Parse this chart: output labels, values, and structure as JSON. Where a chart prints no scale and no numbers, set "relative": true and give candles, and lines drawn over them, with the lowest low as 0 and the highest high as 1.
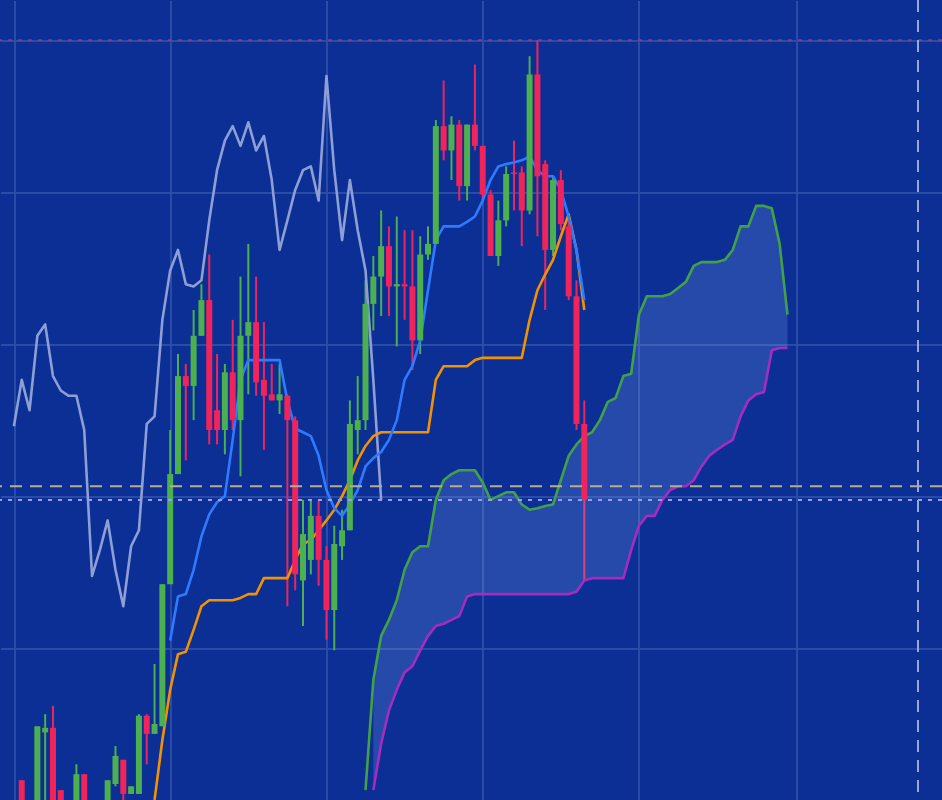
{
  "chart_data": {
    "type": "candlestick",
    "relative": true,
    "grid": true,
    "tick_labels": false,
    "categories": [
      null,
      null,
      null,
      null,
      null,
      null,
      null,
      null,
      null,
      null,
      null,
      null,
      null,
      null,
      null,
      null,
      null,
      null,
      null,
      null,
      null,
      null,
      null,
      null,
      null,
      null,
      null,
      null,
      null,
      null,
      null,
      null,
      null,
      null,
      null,
      null,
      null,
      null,
      null,
      null,
      null,
      null,
      null,
      null,
      null,
      null,
      null,
      null,
      null,
      null,
      null,
      null,
      null,
      null,
      null,
      null,
      null,
      null,
      null,
      null,
      null,
      null,
      null,
      null,
      null,
      null,
      null,
      null,
      null,
      null,
      null,
      null,
      null,
      null,
      null,
      null,
      null,
      null,
      null,
      null,
      null,
      null,
      null,
      null,
      null,
      null,
      null,
      null,
      null,
      null,
      null,
      null,
      null,
      null,
      null,
      null,
      null,
      null,
      null,
      null,
      null,
      null,
      null,
      null,
      null,
      null,
      null,
      null,
      null,
      null,
      null,
      null,
      null,
      null,
      null,
      null,
      null,
      null
    ],
    "colors": [
      null,
      "#f0245a",
      null,
      "#4caf50",
      "#4caf50",
      "#f0245a",
      "#f0245a",
      null,
      "#4caf50",
      "#f0245a",
      null,
      null,
      "#4caf50",
      "#4caf50",
      "#f0245a",
      "#4caf50",
      "#4caf50",
      "#f0245a",
      "#4caf50",
      "#4caf50",
      "#4caf50",
      "#4caf50",
      "#f0245a",
      "#4caf50",
      "#4caf50",
      "#f0245a",
      "#f0245a",
      "#4caf50",
      "#f0245a",
      "#4caf50",
      "#4caf50",
      "#f0245a",
      "#f0245a",
      "#f0245a",
      "#4caf50",
      "#f0245a",
      "#f0245a",
      "#4caf50",
      "#4caf50",
      "#f0245a",
      "#f0245a",
      "#4caf50",
      "#4caf50",
      "#4caf50",
      "#4caf50",
      "#4caf50",
      "#4caf50",
      "#4caf50",
      "#f0245a",
      "#4caf50",
      "#f0245a",
      "#f0245a",
      "#4caf50",
      "#4caf50",
      "#4caf50",
      "#f0245a",
      "#4caf50",
      "#f0245a",
      "#4caf50",
      "#f0245a",
      "#f0245a",
      "#f0245a",
      "#4caf50",
      "#4caf50",
      "#f0245a",
      "#f0245a",
      "#4caf50",
      "#f0245a",
      "#f0245a",
      "#4caf50",
      "#f0245a",
      "#f0245a",
      "#f0245a",
      "#f0245a",
      null,
      null,
      null,
      null,
      null,
      null,
      null,
      null,
      null,
      null,
      null,
      null,
      null,
      null,
      null,
      null,
      null,
      null,
      null,
      null,
      null,
      null,
      null,
      null,
      null,
      null,
      null,
      null,
      null,
      null,
      null,
      null,
      null,
      null,
      null,
      null,
      null,
      null,
      null,
      null,
      null,
      null,
      null,
      null
    ],
    "ohlc": [
      null,
      [
        0.026,
        0.026,
        0,
        0
      ],
      null,
      [
        0,
        0.097,
        0,
        0.097
      ],
      [
        0.089,
        0.113,
        0,
        0.095
      ],
      [
        0.095,
        0.124,
        0,
        0
      ],
      [
        0.013,
        0.013,
        0,
        0
      ],
      null,
      [
        0,
        0.047,
        0,
        0.034
      ],
      [
        0.034,
        0.034,
        0,
        0
      ],
      null,
      null,
      [
        0,
        0.026,
        0,
        0.026
      ],
      [
        0.021,
        0.071,
        0.018,
        0.058
      ],
      [
        0.053,
        0.053,
        0,
        0.008
      ],
      [
        0.008,
        0.018,
        0.008,
        0.018
      ],
      [
        0.008,
        0.113,
        0.008,
        0.111
      ],
      [
        0.111,
        0.113,
        0.047,
        0.087
      ],
      [
        0.087,
        0.179,
        0.087,
        0.1
      ],
      [
        0.097,
        0.284,
        0.097,
        0.284
      ],
      [
        0.284,
        0.487,
        0.284,
        0.429
      ],
      [
        0.429,
        0.587,
        0.429,
        0.558
      ],
      [
        0.558,
        0.574,
        0.447,
        0.545
      ],
      [
        0.545,
        0.645,
        0.5,
        0.611
      ],
      [
        0.611,
        0.679,
        0.611,
        0.658
      ],
      [
        0.658,
        0.718,
        0.468,
        0.487
      ],
      [
        0.513,
        0.587,
        0.468,
        0.487
      ],
      [
        0.487,
        0.574,
        0.455,
        0.563
      ],
      [
        0.563,
        0.632,
        0.487,
        0.5
      ],
      [
        0.5,
        0.689,
        0.426,
        0.611
      ],
      [
        0.611,
        0.732,
        0.534,
        0.629
      ],
      [
        0.629,
        0.689,
        0.532,
        0.55
      ],
      [
        0.553,
        0.629,
        0.461,
        0.532
      ],
      [
        0.534,
        0.574,
        0.526,
        0.526
      ],
      [
        0.526,
        0.574,
        0.508,
        0.534
      ],
      [
        0.532,
        0.534,
        0.255,
        0.5
      ],
      [
        0.5,
        0.505,
        0.276,
        0.297
      ],
      [
        0.289,
        0.395,
        0.229,
        0.35
      ],
      [
        0.316,
        0.395,
        0.297,
        0.374
      ],
      [
        0.374,
        0.395,
        0.282,
        0.316
      ],
      [
        0.316,
        0.334,
        0.211,
        0.25
      ],
      [
        0.25,
        0.361,
        0.197,
        0.337
      ],
      [
        0.334,
        0.382,
        0.316,
        0.355
      ],
      [
        0.355,
        0.526,
        0.355,
        0.495
      ],
      [
        0.487,
        0.558,
        0.455,
        0.5
      ],
      [
        0.5,
        0.684,
        0.487,
        0.653
      ],
      [
        0.653,
        0.716,
        0.618,
        0.689
      ],
      [
        0.689,
        0.776,
        0.637,
        0.729
      ],
      [
        0.729,
        0.755,
        0.637,
        0.676
      ],
      [
        0.676,
        0.768,
        0.597,
        0.679
      ],
      [
        0.679,
        0.75,
        0.632,
        0.676
      ],
      [
        0.676,
        0.75,
        0.566,
        0.605
      ],
      [
        0.605,
        0.742,
        0.587,
        0.718
      ],
      [
        0.718,
        0.755,
        0.711,
        0.732
      ],
      [
        0.732,
        0.895,
        0.732,
        0.887
      ],
      [
        0.887,
        0.947,
        0.842,
        0.855
      ],
      [
        0.855,
        0.9,
        0.816,
        0.889
      ],
      [
        0.889,
        0.895,
        0.789,
        0.808
      ],
      [
        0.808,
        0.889,
        0.789,
        0.889
      ],
      [
        0.889,
        0.968,
        0.855,
        0.861
      ],
      [
        0.861,
        0.861,
        0.789,
        0.797
      ],
      [
        0.797,
        0.803,
        0.716,
        0.716
      ],
      [
        0.716,
        0.789,
        0.703,
        0.763
      ],
      [
        0.763,
        0.834,
        0.755,
        0.824
      ],
      [
        0.826,
        0.868,
        0.776,
        0.824
      ],
      [
        0.826,
        0.834,
        0.729,
        0.776
      ],
      [
        0.776,
        0.979,
        0.771,
        0.955
      ],
      [
        0.955,
        1,
        0.742,
        0.821
      ],
      [
        0.837,
        0.842,
        0.645,
        0.724
      ],
      [
        0.724,
        0.821,
        0.716,
        0.816
      ],
      [
        0.816,
        0.829,
        0.75,
        0.758
      ],
      [
        0.755,
        0.763,
        0.658,
        0.663
      ],
      [
        0.663,
        0.684,
        0.487,
        0.495
      ],
      [
        0.495,
        0.526,
        0.289,
        0.395
      ],
      null,
      null,
      null,
      null,
      null,
      null,
      null,
      null,
      null,
      null,
      null,
      null,
      null,
      null,
      null,
      null,
      null,
      null,
      null,
      null,
      null,
      null,
      null,
      null,
      null,
      null,
      null,
      null,
      null,
      null,
      null,
      null,
      null,
      null,
      null,
      null,
      null,
      null,
      null,
      null,
      null,
      null,
      null,
      null
    ],
    "series": [
      {
        "type": "line",
        "color": "#8e9fd6",
        "values": [
          0.492,
          0.553,
          0.513,
          0.611,
          0.626,
          0.558,
          0.539,
          0.532,
          0.532,
          0.487,
          0.295,
          0.329,
          0.368,
          0.303,
          0.255,
          0.334,
          0.355,
          0.495,
          0.505,
          0.632,
          0.697,
          0.724,
          0.679,
          0.676,
          0.684,
          0.763,
          0.829,
          0.868,
          0.887,
          0.861,
          0.892,
          0.855,
          0.874,
          0.816,
          0.724,
          0.763,
          0.803,
          0.829,
          0.834,
          0.789,
          0.953,
          0.829,
          0.737,
          0.816,
          0.75,
          0.697,
          0.553,
          0.395,
          null,
          null,
          null,
          null,
          null,
          null,
          null,
          null,
          null,
          null,
          null,
          null,
          null,
          null,
          null,
          null,
          null,
          null,
          null,
          null,
          null,
          null,
          null,
          null,
          null,
          null,
          null,
          null,
          null,
          null,
          null,
          null,
          null,
          null,
          null,
          null,
          null,
          null,
          null,
          null,
          null,
          null,
          null,
          null,
          null,
          null,
          null,
          null,
          null,
          null,
          null,
          null,
          null,
          null,
          null,
          null,
          null,
          null,
          null,
          null,
          null,
          null,
          null,
          null,
          null,
          null,
          null,
          null,
          null,
          null
        ]
      },
      {
        "type": "line",
        "color": "#43a047",
        "values": [
          null,
          null,
          null,
          null,
          null,
          null,
          null,
          null,
          null,
          null,
          null,
          null,
          null,
          null,
          null,
          null,
          null,
          null,
          null,
          null,
          null,
          null,
          null,
          null,
          null,
          null,
          null,
          null,
          null,
          null,
          null,
          null,
          null,
          null,
          null,
          null,
          null,
          null,
          null,
          null,
          null,
          null,
          null,
          null,
          null,
          0.013,
          0.158,
          0.216,
          0.237,
          0.263,
          0.303,
          0.326,
          0.334,
          0.334,
          0.395,
          0.421,
          0.429,
          0.434,
          0.434,
          0.434,
          0.418,
          0.395,
          0.4,
          0.405,
          0.405,
          0.389,
          0.382,
          0.384,
          0.387,
          0.389,
          0.421,
          0.453,
          0.468,
          0.479,
          0.484,
          0.5,
          0.524,
          0.529,
          0.558,
          0.561,
          0.639,
          0.663,
          0.663,
          0.663,
          0.666,
          0.674,
          0.682,
          0.703,
          0.708,
          0.708,
          0.708,
          0.711,
          0.724,
          0.755,
          0.755,
          0.782,
          0.782,
          0.779,
          0.732,
          0.639,
          null,
          null,
          null,
          null,
          null,
          null,
          null,
          null,
          null,
          null,
          null,
          null,
          null,
          null,
          null,
          null,
          null,
          null
        ],
        "lower": [
          null,
          null,
          null,
          null,
          null,
          null,
          null,
          null,
          null,
          null,
          null,
          null,
          null,
          null,
          null,
          null,
          null,
          null,
          null,
          null,
          null,
          null,
          null,
          null,
          null,
          null,
          null,
          null,
          null,
          null,
          null,
          null,
          null,
          null,
          null,
          null,
          null,
          null,
          null,
          null,
          null,
          null,
          null,
          null,
          null,
          null,
          0.013,
          0.074,
          0.118,
          0.145,
          0.168,
          0.176,
          0.197,
          0.216,
          0.229,
          0.232,
          0.237,
          0.242,
          0.268,
          0.271,
          0.271,
          0.271,
          0.271,
          0.271,
          0.271,
          0.271,
          0.271,
          0.271,
          0.271,
          0.271,
          0.271,
          0.271,
          0.274,
          0.289,
          0.292,
          0.292,
          0.292,
          0.292,
          0.292,
          0.329,
          0.361,
          0.374,
          0.374,
          0.395,
          0.408,
          0.413,
          0.413,
          0.421,
          0.439,
          0.453,
          0.461,
          0.468,
          0.474,
          0.505,
          0.526,
          0.534,
          0.537,
          0.592,
          0.595,
          0.595,
          null,
          null,
          null,
          null,
          null,
          null,
          null,
          null,
          null,
          null,
          null,
          null,
          null,
          null,
          null,
          null,
          null,
          null
        ],
        "upper": [
          null,
          null,
          null,
          null,
          null,
          null,
          null,
          null,
          null,
          null,
          null,
          null,
          null,
          null,
          null,
          null,
          null,
          null,
          null,
          null,
          null,
          null,
          null,
          null,
          null,
          null,
          null,
          null,
          null,
          null,
          null,
          null,
          null,
          null,
          null,
          null,
          null,
          null,
          null,
          null,
          null,
          null,
          null,
          null,
          null,
          null,
          0.158,
          0.216,
          0.237,
          0.263,
          0.303,
          0.326,
          0.334,
          0.334,
          0.395,
          0.421,
          0.429,
          0.434,
          0.434,
          0.434,
          0.418,
          0.395,
          0.4,
          0.405,
          0.405,
          0.389,
          0.382,
          0.384,
          0.387,
          0.389,
          0.421,
          0.453,
          0.468,
          0.479,
          0.484,
          0.5,
          0.524,
          0.529,
          0.558,
          0.561,
          0.639,
          0.663,
          0.663,
          0.663,
          0.666,
          0.674,
          0.682,
          0.703,
          0.708,
          0.708,
          0.708,
          0.711,
          0.724,
          0.755,
          0.755,
          0.782,
          0.782,
          0.779,
          0.732,
          0.639,
          null,
          null,
          null,
          null,
          null,
          null,
          null,
          null,
          null,
          null,
          null,
          null,
          null,
          null,
          null,
          null,
          null,
          null
        ]
      },
      {
        "type": "line",
        "color": "#a42cc0",
        "values": [
          null,
          null,
          null,
          null,
          null,
          null,
          null,
          null,
          null,
          null,
          null,
          null,
          null,
          null,
          null,
          null,
          null,
          null,
          null,
          null,
          null,
          null,
          null,
          null,
          null,
          null,
          null,
          null,
          null,
          null,
          null,
          null,
          null,
          null,
          null,
          null,
          null,
          null,
          null,
          null,
          null,
          null,
          null,
          null,
          null,
          null,
          0.013,
          0.074,
          0.118,
          0.145,
          0.168,
          0.176,
          0.197,
          0.216,
          0.229,
          0.232,
          0.237,
          0.242,
          0.268,
          0.271,
          0.271,
          0.271,
          0.271,
          0.271,
          0.271,
          0.271,
          0.271,
          0.271,
          0.271,
          0.271,
          0.271,
          0.271,
          0.274,
          0.289,
          0.292,
          0.292,
          0.292,
          0.292,
          0.292,
          0.329,
          0.361,
          0.374,
          0.374,
          0.395,
          0.408,
          0.413,
          0.413,
          0.421,
          0.439,
          0.453,
          0.461,
          0.468,
          0.474,
          0.505,
          0.526,
          0.534,
          0.537,
          0.592,
          0.595,
          0.595,
          null,
          null,
          null,
          null,
          null,
          null,
          null,
          null,
          null,
          null,
          null,
          null,
          null,
          null,
          null,
          null,
          null,
          null
        ]
      },
      {
        "type": "line",
        "color": "#f39200",
        "values": [
          null,
          null,
          null,
          null,
          null,
          null,
          null,
          null,
          null,
          null,
          null,
          null,
          null,
          null,
          null,
          null,
          null,
          null,
          0,
          0.079,
          0.145,
          0.192,
          0.195,
          0.224,
          0.255,
          0.263,
          0.263,
          0.263,
          0.263,
          0.266,
          0.271,
          0.271,
          0.292,
          0.292,
          0.292,
          0.292,
          0.316,
          0.337,
          0.342,
          0.355,
          0.368,
          0.382,
          0.4,
          0.421,
          0.447,
          0.466,
          0.479,
          0.484,
          0.484,
          0.484,
          0.484,
          0.484,
          0.484,
          0.484,
          0.553,
          0.571,
          0.571,
          0.571,
          0.571,
          0.579,
          0.582,
          0.582,
          0.582,
          0.582,
          0.582,
          0.582,
          0.632,
          0.671,
          0.692,
          0.711,
          0.742,
          0.771,
          0.724,
          0.645,
          null,
          null,
          null,
          null,
          null,
          null,
          null,
          null,
          null,
          null,
          null,
          null,
          null,
          null,
          null,
          null,
          null,
          null,
          null,
          null,
          null,
          null,
          null,
          null,
          null,
          null,
          null,
          null,
          null,
          null,
          null,
          null,
          null,
          null,
          null,
          null,
          null,
          null,
          null,
          null,
          null,
          null,
          null,
          null
        ]
      },
      {
        "type": "line",
        "color": "#2f7bff",
        "values": [
          null,
          null,
          null,
          null,
          null,
          null,
          null,
          null,
          null,
          null,
          null,
          null,
          null,
          null,
          null,
          null,
          null,
          null,
          null,
          null,
          0.21,
          0.268,
          0.271,
          0.303,
          0.347,
          0.376,
          0.392,
          0.4,
          0.474,
          0.553,
          0.579,
          0.579,
          0.579,
          0.579,
          0.579,
          0.526,
          0.489,
          0.484,
          0.479,
          0.453,
          0.408,
          0.384,
          0.374,
          0.389,
          0.408,
          0.439,
          0.45,
          0.458,
          0.474,
          0.5,
          0.553,
          0.571,
          0.605,
          0.671,
          0.737,
          0.755,
          0.755,
          0.755,
          0.761,
          0.768,
          0.789,
          0.816,
          0.834,
          0.837,
          0.839,
          0.842,
          0.847,
          0.829,
          0.821,
          0.821,
          0.803,
          0.768,
          0.724,
          0.658,
          null,
          null,
          null,
          null,
          null,
          null,
          null,
          null,
          null,
          null,
          null,
          null,
          null,
          null,
          null,
          null,
          null,
          null,
          null,
          null,
          null,
          null,
          null,
          null,
          null,
          null,
          null,
          null,
          null,
          null,
          null,
          null,
          null,
          null,
          null,
          null,
          null,
          null,
          null,
          null,
          null,
          null,
          null,
          null
        ]
      }
    ],
    "ref_lines": [
      {
        "axis": "y",
        "value": 0.413,
        "color": "#b8ad8c",
        "line_style": "dashed"
      },
      {
        "axis": "y",
        "value": 0.395,
        "color": "#9a9cf0",
        "line_style": "dotted"
      },
      {
        "axis": "y",
        "value": 1,
        "color": "#7b3f8c",
        "line_style": "dotted"
      }
    ]
  }
}
